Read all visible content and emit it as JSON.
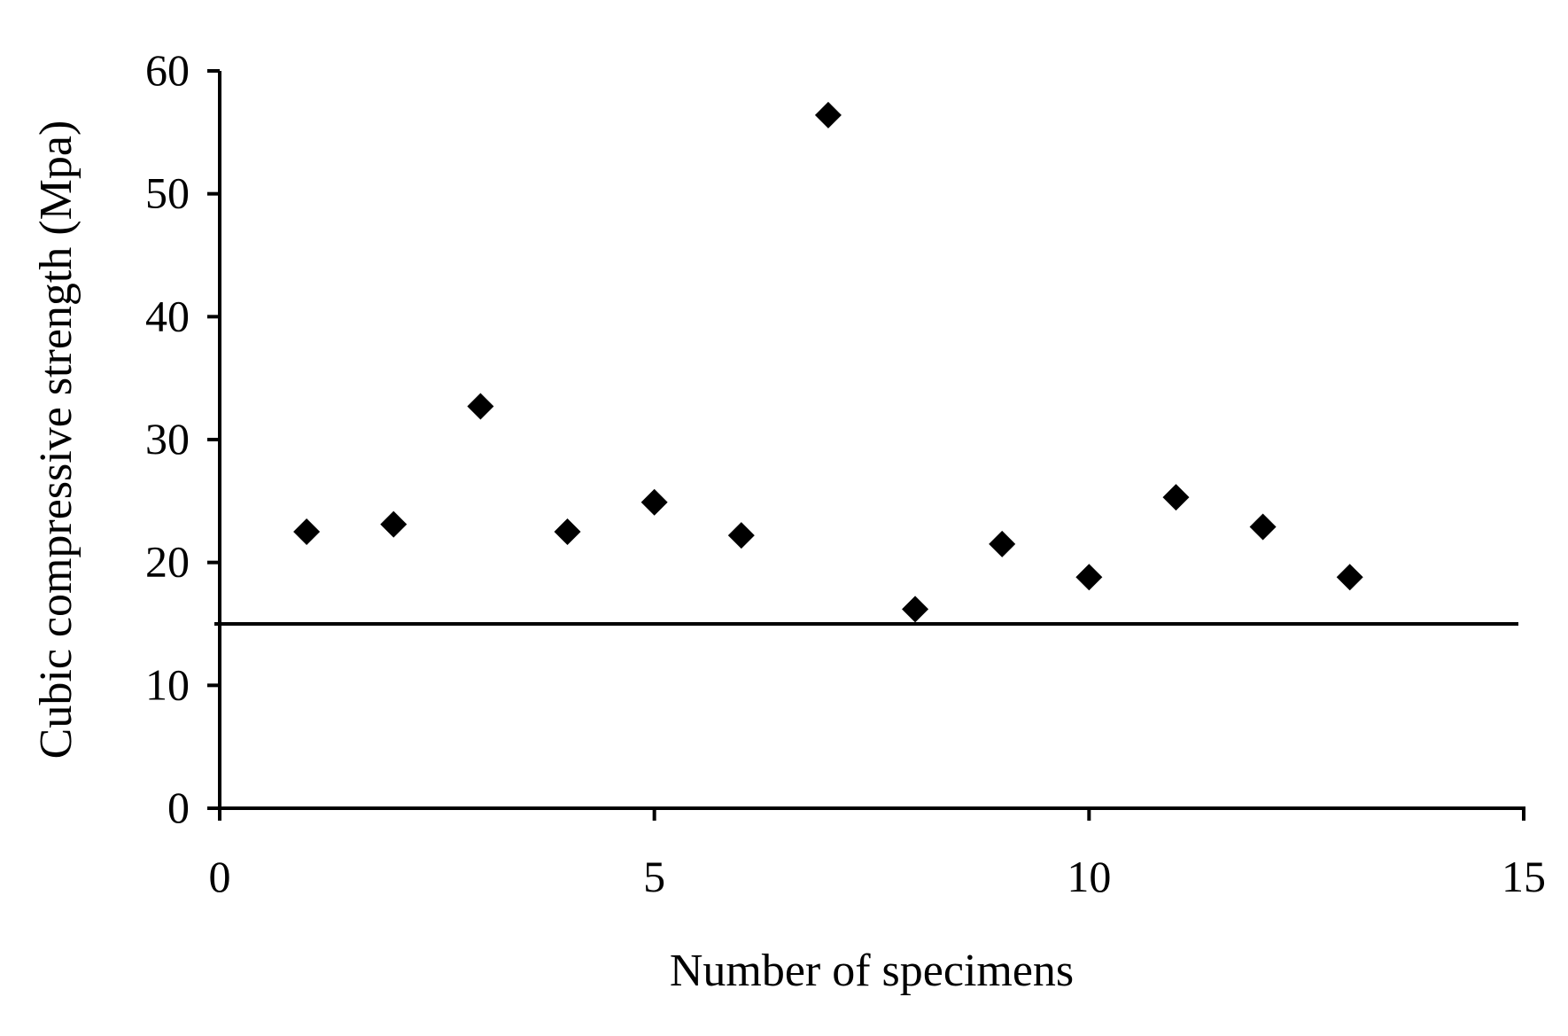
{
  "chart_data": {
    "type": "scatter",
    "title": "",
    "xlabel": "Number of specimens",
    "ylabel": "Cubic compressive strength (Mpa)",
    "xlim": [
      0,
      15
    ],
    "ylim": [
      0,
      60
    ],
    "xticks": [
      0,
      5,
      10,
      15
    ],
    "yticks": [
      0,
      10,
      20,
      30,
      40,
      50,
      60
    ],
    "grid": false,
    "legend": "none",
    "marker": "diamond",
    "marker_color": "#000000",
    "series": [
      {
        "x": [
          1,
          2,
          3,
          4,
          5,
          6,
          7,
          8,
          9,
          10,
          11,
          12,
          13
        ],
        "y": [
          22.5,
          23.1,
          32.7,
          22.5,
          24.9,
          22.2,
          56.4,
          16.2,
          21.5,
          18.8,
          25.3,
          22.9,
          18.8
        ]
      }
    ],
    "reference_line": {
      "y": 15
    }
  }
}
